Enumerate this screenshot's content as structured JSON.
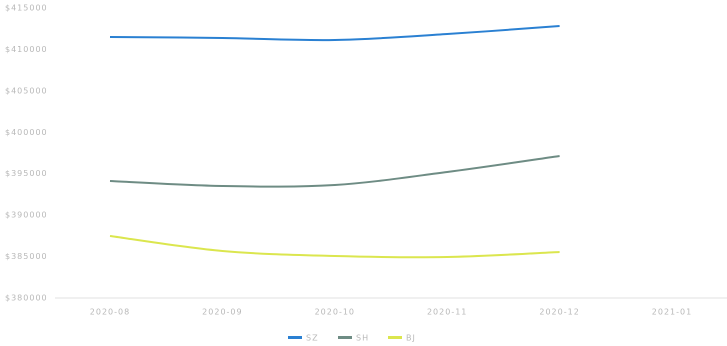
{
  "chart_data": {
    "type": "line",
    "categories": [
      "2020-08",
      "2020-09",
      "2020-10",
      "2020-11",
      "2020-12",
      "2021-01"
    ],
    "series": [
      {
        "name": "SZ",
        "color": "#2a80d2",
        "values": [
          411500,
          411380,
          411140,
          411860,
          412830,
          null
        ]
      },
      {
        "name": "SH",
        "color": "#6e8c84",
        "values": [
          394120,
          393520,
          393640,
          395210,
          397140,
          null
        ]
      },
      {
        "name": "BJ",
        "color": "#dbe64e",
        "values": [
          387480,
          385670,
          385070,
          384950,
          385550,
          null
        ]
      }
    ],
    "ylim": [
      380000,
      415000
    ],
    "yticks": [
      {
        "value": 380000,
        "label": "$380000"
      },
      {
        "value": 385000,
        "label": "$385000"
      },
      {
        "value": 390000,
        "label": "$390000"
      },
      {
        "value": 395000,
        "label": "$395000"
      },
      {
        "value": 400000,
        "label": "$400000"
      },
      {
        "value": 405000,
        "label": "$405000"
      },
      {
        "value": 410000,
        "label": "$410000"
      },
      {
        "value": 415000,
        "label": "$415000"
      }
    ],
    "legend": "bottom"
  }
}
